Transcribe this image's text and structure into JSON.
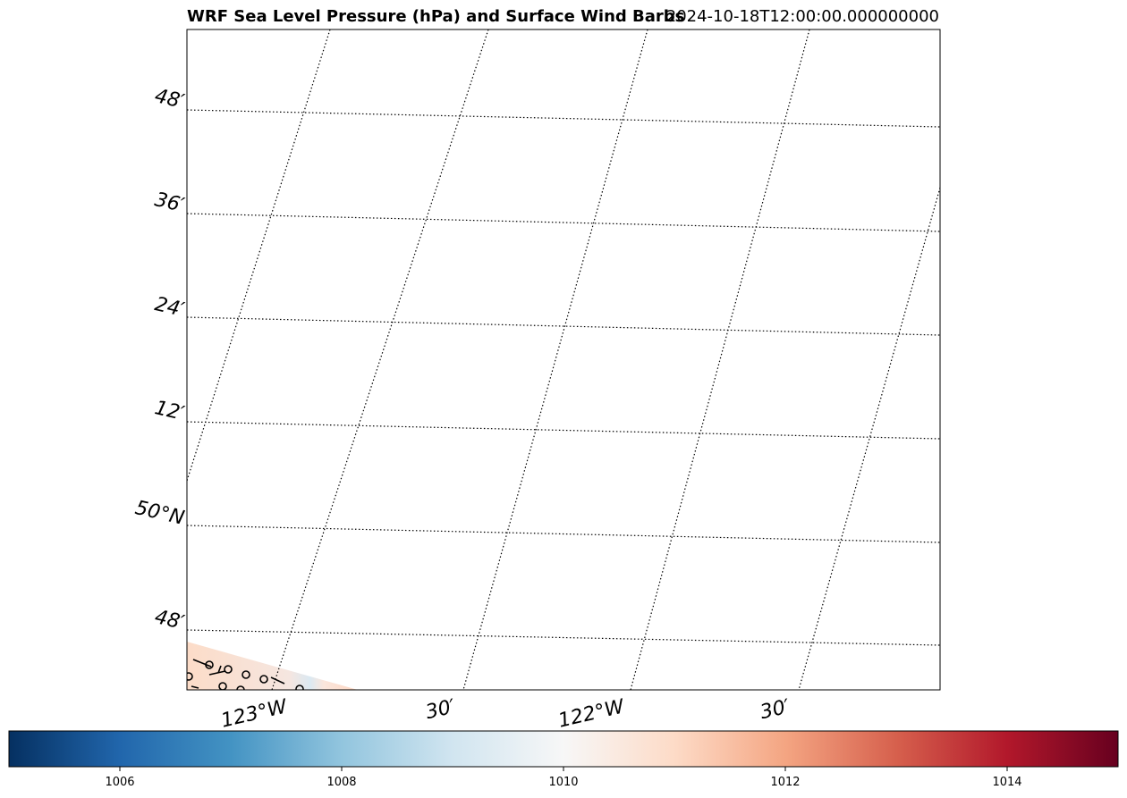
{
  "figure": {
    "title_left": "WRF Sea Level Pressure (hPa) and Surface Wind Barbs",
    "title_right": "2024-10-18T12:00:00.000000000"
  },
  "chart_data": {
    "type": "heatmap",
    "title": "WRF Sea Level Pressure (hPa) and Surface Wind Barbs",
    "valid_time": "2024-10-18T12:00:00.000000000",
    "map": {
      "lat_labels": [
        "48′",
        "36′",
        "24′",
        "12′",
        "50°N",
        "48′"
      ],
      "lon_labels": [
        "123°W",
        "30′",
        "122°W",
        "30′"
      ],
      "gridlines": "dotted",
      "shaded_region": "bottom-left corner only"
    },
    "colorbar": {
      "orientation": "horizontal",
      "colormap": "RdBu_r",
      "range": [
        1005,
        1015
      ],
      "ticks": [
        1006,
        1008,
        1010,
        1012,
        1014
      ],
      "tick_labels": [
        "1006",
        "1008",
        "1010",
        "1012",
        "1014"
      ]
    },
    "colors": {
      "low": "#053061",
      "mid": "#f7f7f7",
      "high": "#67001f"
    }
  }
}
